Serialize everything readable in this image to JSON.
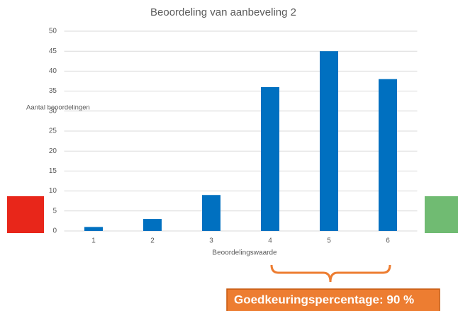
{
  "chart_data": {
    "type": "bar",
    "title": "Beoordeling van aanbeveling 2",
    "x_label": "Beoordelingswaarde",
    "y_label": "Aantal beoordelingen",
    "categories": [
      "1",
      "2",
      "3",
      "4",
      "5",
      "6"
    ],
    "values": [
      1,
      3,
      9,
      36,
      45,
      38
    ],
    "color": "#0070c0",
    "ylim": [
      0,
      50
    ],
    "yticks": [
      0,
      5,
      10,
      15,
      20,
      25,
      30,
      35,
      40,
      45,
      50
    ],
    "grid": true,
    "annotation": "Goedkeuringspercentage: 90 %"
  }
}
